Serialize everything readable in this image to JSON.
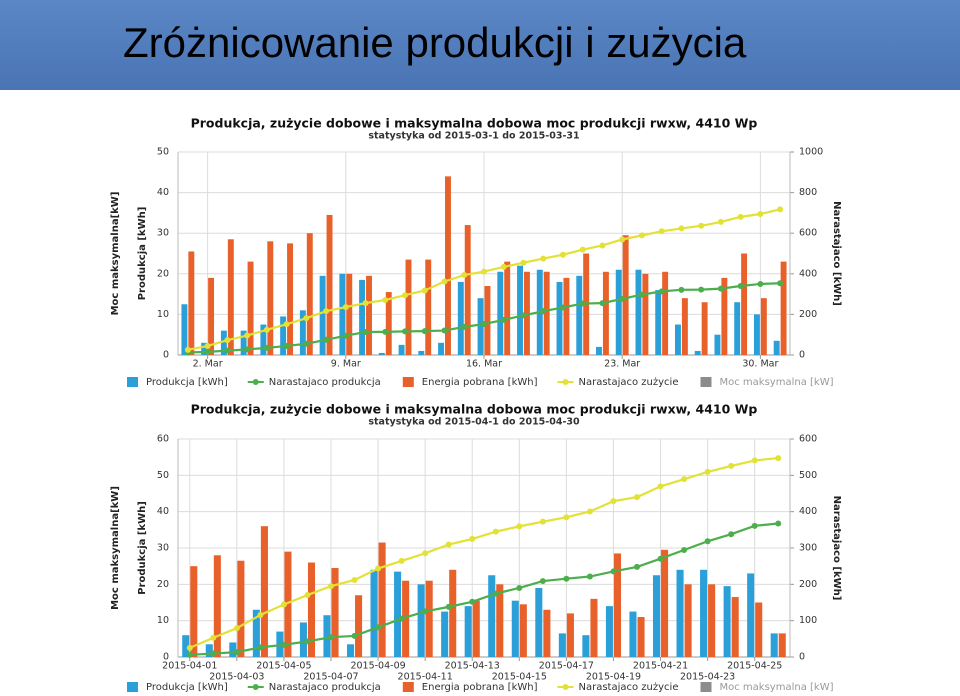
{
  "title": "Zróżnicowanie produkcji i zużycia",
  "chart_data": [
    {
      "type": "bar",
      "title": "Produkcja, zużycie dobowe i maksymalna dobowa moc produkcji rwxw, 4410 Wp",
      "subtitle": "statystyka od 2015-03-1 do 2015-03-31",
      "ylabels": [
        "Moc maksymalna[kW]",
        "Produkcja [kWh]"
      ],
      "y2label": "Narastajaco [kWh]",
      "categories": [
        null,
        "2. Mar",
        null,
        null,
        null,
        null,
        null,
        null,
        "9. Mar",
        null,
        null,
        null,
        null,
        null,
        null,
        "16. Mar",
        null,
        null,
        null,
        null,
        null,
        null,
        "23. Mar",
        null,
        null,
        null,
        null,
        null,
        null,
        "30. Mar",
        null
      ],
      "series": [
        {
          "name": "Produkcja [kWh]",
          "type": "bar",
          "color": "#2a9fd8",
          "values": [
            12.5,
            3,
            6,
            6,
            7.5,
            9.5,
            11,
            19.5,
            20,
            18.5,
            0.5,
            2.5,
            1,
            3,
            18,
            14,
            20.5,
            22,
            21,
            18,
            19.5,
            2,
            21,
            21,
            16,
            7.5,
            1,
            5,
            13,
            10,
            3.5
          ]
        },
        {
          "name": "Narastajaco produkcja",
          "type": "line",
          "axis": "y2",
          "color": "#4cae4c",
          "values": [
            12.5,
            15.5,
            21.5,
            27.5,
            35,
            44.5,
            55.5,
            75,
            95,
            113.5,
            114,
            116.5,
            117.5,
            120.5,
            138.5,
            152.5,
            173,
            195,
            216,
            234,
            253.5,
            255.5,
            276.5,
            297.5,
            313.5,
            321,
            322,
            327,
            340,
            350,
            353.5
          ]
        },
        {
          "name": "Energia pobrana [kWh]",
          "type": "bar",
          "color": "#e8602a",
          "values": [
            25.5,
            19,
            28.5,
            23,
            28,
            27.5,
            30,
            34.5,
            20,
            19.5,
            15.5,
            23.5,
            23.5,
            44,
            32,
            17,
            23,
            20.5,
            20.5,
            19,
            25,
            20.5,
            29.5,
            20,
            20.5,
            14,
            13,
            19,
            25,
            14,
            23
          ]
        },
        {
          "name": "Narastajaco zużycie",
          "type": "line",
          "axis": "y2",
          "color": "#e2e236",
          "values": [
            25.5,
            44.5,
            73,
            96,
            124,
            151.5,
            181.5,
            216,
            236,
            255.5,
            271,
            294.5,
            318,
            362,
            394,
            411,
            434,
            454.5,
            475,
            494,
            519,
            539.5,
            569,
            589,
            609.5,
            623.5,
            636.5,
            655.5,
            680.5,
            694.5,
            717.5
          ]
        },
        {
          "name": "Moc maksymalna [kW]",
          "type": "bar",
          "color": "#8c8c8c",
          "values": [
            null,
            null,
            null,
            null,
            null,
            null,
            null,
            null,
            null,
            null,
            null,
            null,
            null,
            null,
            null,
            null,
            null,
            null,
            null,
            null,
            null,
            null,
            null,
            null,
            null,
            null,
            null,
            null,
            null,
            null,
            null
          ]
        }
      ],
      "ylim": [
        0,
        50
      ],
      "yticks": [
        0,
        10,
        20,
        30,
        40,
        50
      ],
      "y2lim": [
        0,
        1000
      ],
      "y2ticks": [
        0,
        200,
        400,
        600,
        800,
        1000
      ],
      "grid": true,
      "legend": "bottom"
    },
    {
      "type": "bar",
      "title": "Produkcja, zużycie dobowe i maksymalna dobowa moc produkcji rwxw, 4410 Wp",
      "subtitle": "statystyka od 2015-04-1 do 2015-04-30",
      "ylabels": [
        "Moc maksymalna[kW]",
        "Produkcja [kWh]"
      ],
      "y2label": "Narastajaco [kWh]",
      "categories": [
        "2015-04-01",
        null,
        "2015-04-03",
        null,
        "2015-04-05",
        null,
        "2015-04-07",
        null,
        "2015-04-09",
        null,
        "2015-04-11",
        null,
        "2015-04-13",
        null,
        "2015-04-15",
        null,
        "2015-04-17",
        null,
        "2015-04-19",
        null,
        "2015-04-21",
        null,
        "2015-04-23",
        null,
        "2015-04-25",
        null
      ],
      "series": [
        {
          "name": "Produkcja [kWh]",
          "type": "bar",
          "color": "#2a9fd8",
          "values": [
            6,
            3.5,
            4,
            13,
            7,
            9.5,
            11.5,
            3.5,
            24,
            23.5,
            20,
            12.5,
            14,
            22.5,
            15.5,
            19,
            6.5,
            6,
            14,
            12.5,
            22.5,
            24,
            24,
            19.5,
            23,
            6.5
          ]
        },
        {
          "name": "Narastajaco produkcja",
          "type": "line",
          "axis": "y2",
          "color": "#4cae4c",
          "values": [
            6,
            9.5,
            13.5,
            26.5,
            33.5,
            43,
            54.5,
            58,
            82,
            105.5,
            125.5,
            138,
            152,
            174.5,
            190,
            209,
            215.5,
            221.5,
            235.5,
            248,
            270.5,
            294.5,
            318.5,
            338,
            361,
            367.5
          ]
        },
        {
          "name": "Energia pobrana [kWh]",
          "type": "bar",
          "color": "#e8602a",
          "values": [
            25,
            28,
            26.5,
            36,
            29,
            26,
            24.5,
            17,
            31.5,
            21,
            21,
            24,
            15.5,
            20,
            14.5,
            13,
            12,
            16,
            28.5,
            11,
            29.5,
            20,
            20,
            16.5,
            15,
            6.5
          ]
        },
        {
          "name": "Narastajaco zużycie",
          "type": "line",
          "axis": "y2",
          "color": "#e2e236",
          "values": [
            25,
            53,
            79.5,
            115.5,
            144.5,
            170.5,
            195,
            212,
            243.5,
            264.5,
            285.5,
            309.5,
            325,
            345,
            359.5,
            372.5,
            384.5,
            400.5,
            429,
            440,
            469.5,
            489.5,
            509.5,
            526,
            541,
            547.5
          ]
        },
        {
          "name": "Moc maksymalna [kW]",
          "type": "bar",
          "color": "#8c8c8c",
          "values": [
            null,
            null,
            null,
            null,
            null,
            null,
            null,
            null,
            null,
            null,
            null,
            null,
            null,
            null,
            null,
            null,
            null,
            null,
            null,
            null,
            null,
            null,
            null,
            null,
            null,
            null
          ]
        }
      ],
      "ylim": [
        0,
        60
      ],
      "yticks": [
        0,
        10,
        20,
        30,
        40,
        50,
        60
      ],
      "y2lim": [
        0,
        600
      ],
      "y2ticks": [
        0,
        100,
        200,
        300,
        400,
        500,
        600
      ],
      "grid": true,
      "legend": "bottom"
    }
  ]
}
